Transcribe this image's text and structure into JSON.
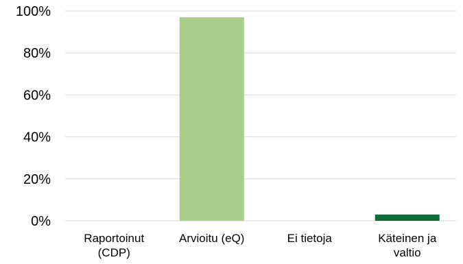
{
  "chart_data": {
    "type": "bar",
    "categories": [
      [
        "Raportoinut",
        "(CDP)"
      ],
      [
        "Arvioitu (eQ)"
      ],
      [
        "Ei tietoja"
      ],
      [
        "Käteinen ja",
        "valtio"
      ]
    ],
    "values": [
      0,
      97,
      0,
      3
    ],
    "bar_colors": [
      "#a9cd8c",
      "#a9cd8c",
      "#a9cd8c",
      "#0b6e36"
    ],
    "ylim": [
      0,
      100
    ],
    "y_ticks": [
      0,
      20,
      40,
      60,
      80,
      100
    ],
    "y_tick_labels": [
      "0%",
      "20%",
      "40%",
      "60%",
      "80%",
      "100%"
    ],
    "grid": true,
    "gridline_color": "#d9d9d9",
    "legend": "none"
  }
}
